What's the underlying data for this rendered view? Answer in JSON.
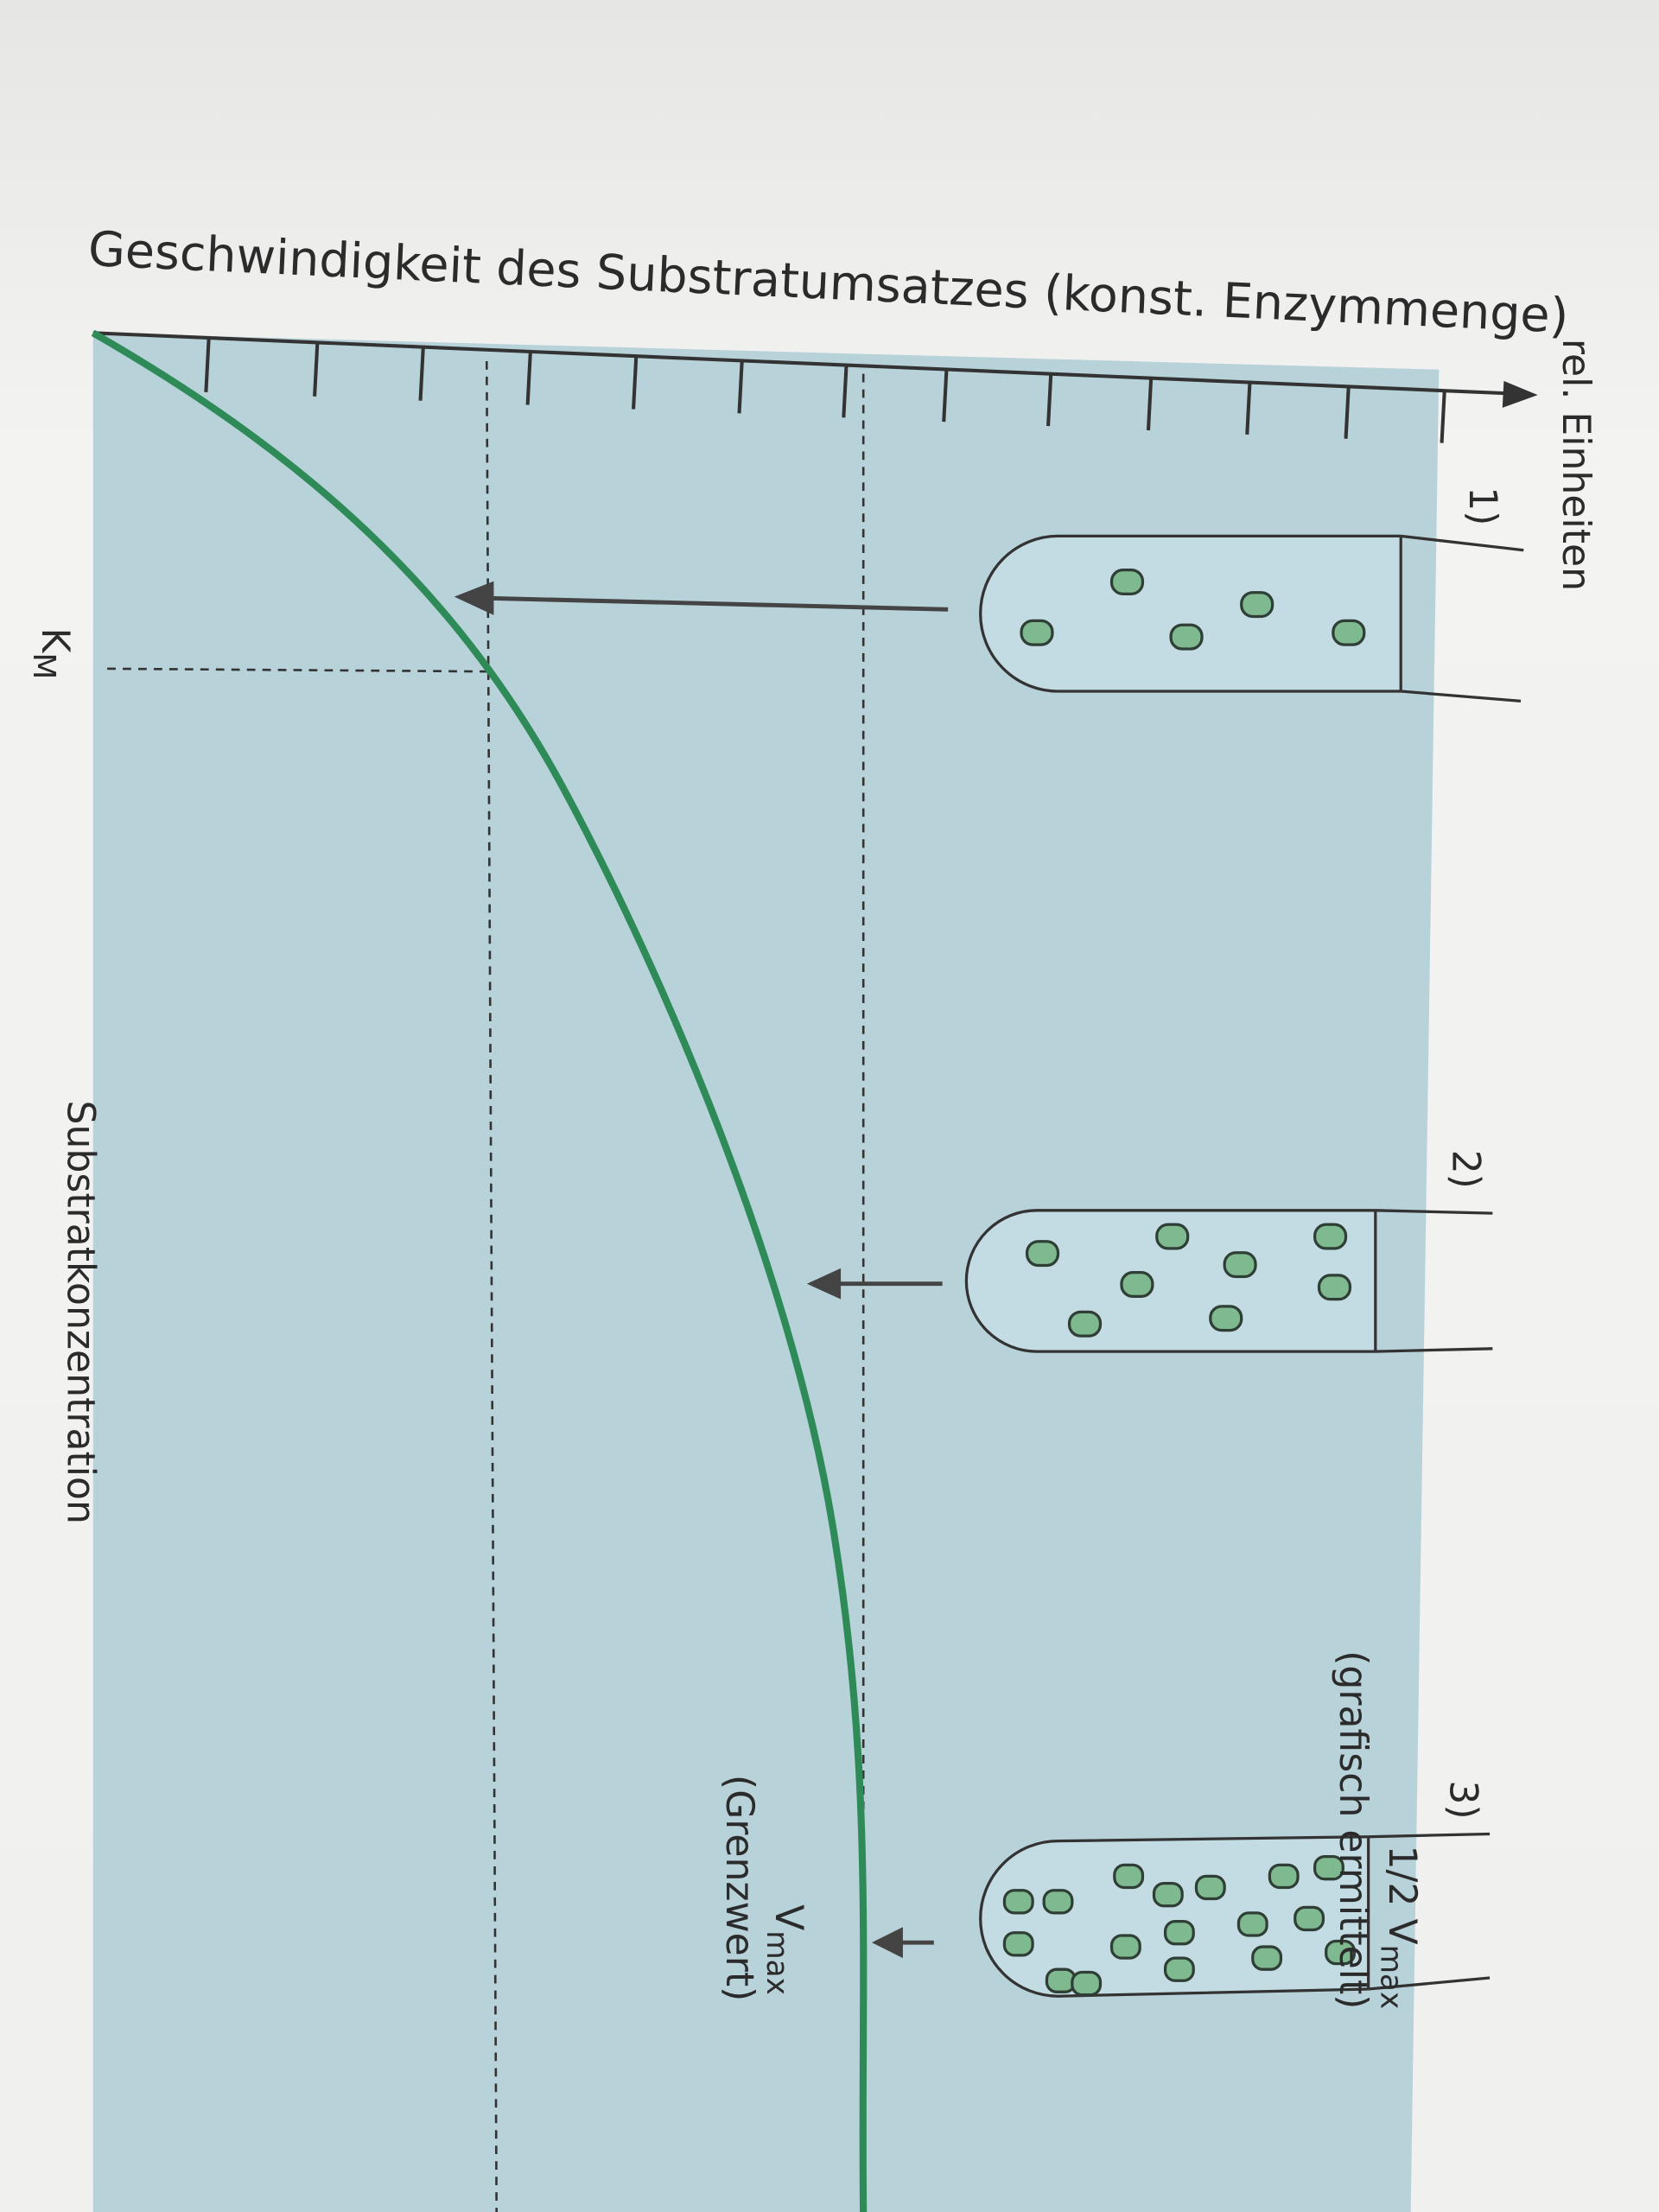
{
  "title": "Geschwindigkeit des Substratumsatzes (konst. Enzymmenge)",
  "y_axis_label": "rel. Einheiten",
  "x_axis_label": "Substratkonzentration",
  "km": {
    "symbol": "K",
    "subscript": "M"
  },
  "tubes": [
    "1)",
    "2)",
    "3)"
  ],
  "vmax": {
    "symbol": "V",
    "subscript": "max",
    "note": "(Grenzwert)"
  },
  "half_vmax": {
    "symbol": "1/2 V",
    "subscript": "max",
    "note": "(grafisch ermittelt)"
  }
}
